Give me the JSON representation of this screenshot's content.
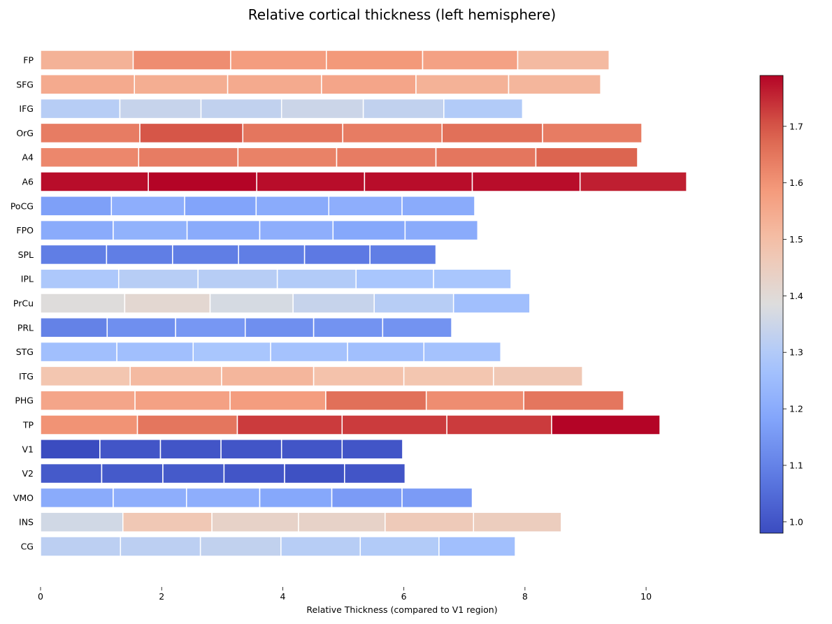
{
  "chart_data": {
    "type": "bar",
    "orientation": "horizontal",
    "stacked": true,
    "title": "Relative cortical thickness (left hemisphere)",
    "xlabel": "Relative Thickness (compared to V1 region)",
    "ylabel": "",
    "xlim": [
      0,
      11.5
    ],
    "xticks": [
      0,
      2,
      4,
      6,
      8,
      10
    ],
    "grid": false,
    "colormap": "coolwarm",
    "colorbar": {
      "min": 0.98,
      "max": 1.79,
      "ticks": [
        1.0,
        1.1,
        1.2,
        1.3,
        1.4,
        1.5,
        1.6,
        1.7
      ]
    },
    "categories": [
      "FP",
      "SFG",
      "IFG",
      "OrG",
      "A4",
      "A6",
      "PoCG",
      "FPO",
      "SPL",
      "IPL",
      "PrCu",
      "PRL",
      "STG",
      "ITG",
      "PHG",
      "TP",
      "V1",
      "V2",
      "VMO",
      "INS",
      "CG"
    ],
    "segments": [
      [
        1.53,
        1.61,
        1.58,
        1.59,
        1.57,
        1.51
      ],
      [
        1.55,
        1.54,
        1.55,
        1.56,
        1.53,
        1.52
      ],
      [
        1.31,
        1.34,
        1.33,
        1.35,
        1.33,
        1.3
      ],
      [
        1.64,
        1.7,
        1.65,
        1.64,
        1.66,
        1.64
      ],
      [
        1.62,
        1.64,
        1.63,
        1.64,
        1.65,
        1.68
      ],
      [
        1.78,
        1.79,
        1.78,
        1.78,
        1.78,
        1.76
      ],
      [
        1.17,
        1.21,
        1.18,
        1.2,
        1.21,
        1.2
      ],
      [
        1.2,
        1.22,
        1.2,
        1.21,
        1.19,
        1.2
      ],
      [
        1.09,
        1.09,
        1.09,
        1.09,
        1.08,
        1.09
      ],
      [
        1.29,
        1.31,
        1.31,
        1.3,
        1.28,
        1.28
      ],
      [
        1.39,
        1.41,
        1.37,
        1.34,
        1.31,
        1.26
      ],
      [
        1.1,
        1.13,
        1.15,
        1.13,
        1.14,
        1.14
      ],
      [
        1.26,
        1.26,
        1.28,
        1.27,
        1.26,
        1.27
      ],
      [
        1.48,
        1.51,
        1.52,
        1.49,
        1.48,
        1.47
      ],
      [
        1.56,
        1.57,
        1.58,
        1.66,
        1.61,
        1.65
      ],
      [
        1.6,
        1.65,
        1.73,
        1.73,
        1.73,
        1.79
      ],
      [
        0.98,
        1.0,
        1.0,
        1.0,
        1.0,
        1.0
      ],
      [
        1.01,
        1.01,
        1.01,
        1.0,
        0.99,
        1.0
      ],
      [
        1.2,
        1.21,
        1.21,
        1.19,
        1.16,
        1.16
      ],
      [
        1.36,
        1.47,
        1.43,
        1.43,
        1.46,
        1.45
      ],
      [
        1.32,
        1.32,
        1.33,
        1.31,
        1.3,
        1.26
      ]
    ]
  }
}
